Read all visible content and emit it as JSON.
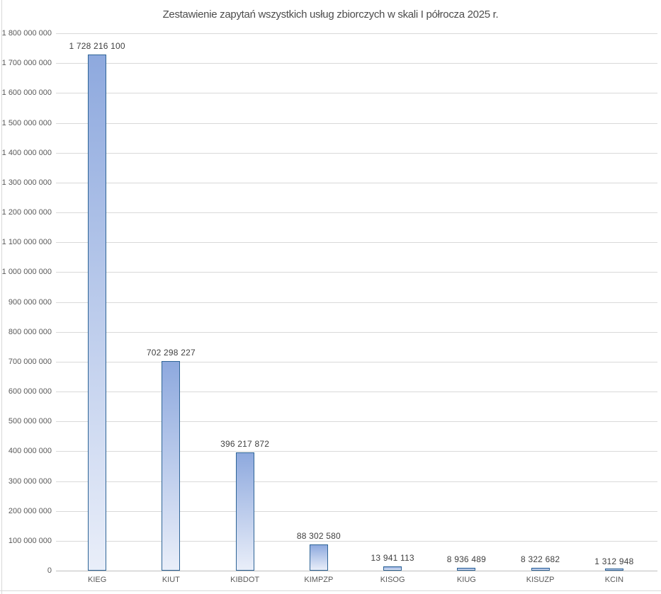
{
  "chart_data": {
    "type": "bar",
    "title": "Zestawienie zapytań wszystkich usług zbiorczych w skali I półrocza 2025 r.",
    "xlabel": "",
    "ylabel": "",
    "legend": "none",
    "grid": true,
    "categories": [
      "KIEG",
      "KIUT",
      "KIBDOT",
      "KIMPZP",
      "KISOG",
      "KIUG",
      "KISUZP",
      "KCIN"
    ],
    "values": [
      1728216100,
      702298227,
      396217872,
      88302580,
      13941113,
      8936489,
      8322682,
      1312948
    ],
    "value_labels": [
      "1 728 216 100",
      "702 298 227",
      "396 217 872",
      "88 302 580",
      "13 941 113",
      "8 936 489",
      "8 322 682",
      "1 312 948"
    ],
    "ylim": [
      0,
      1800000000
    ],
    "ytick_step": 100000000,
    "ytick_labels": [
      "0",
      "100 000 000",
      "200 000 000",
      "300 000 000",
      "400 000 000",
      "500 000 000",
      "600 000 000",
      "700 000 000",
      "800 000 000",
      "900 000 000",
      "1 000 000 000",
      "1 100 000 000",
      "1 200 000 000",
      "1 300 000 000",
      "1 400 000 000",
      "1 500 000 000",
      "1 600 000 000",
      "1 700 000 000",
      "1 800 000 000"
    ],
    "colors": {
      "bar_fill_top": "#8ea9de",
      "bar_fill_bottom": "#e9eef9",
      "bar_border": "#2e6496",
      "gridline": "#d9d9d9",
      "axis_line": "#bfbfbf",
      "frame": "#d9d9d9",
      "title_text": "#4d4d4d",
      "tick_text": "#595959",
      "value_text": "#404040",
      "background": "#ffffff"
    }
  }
}
